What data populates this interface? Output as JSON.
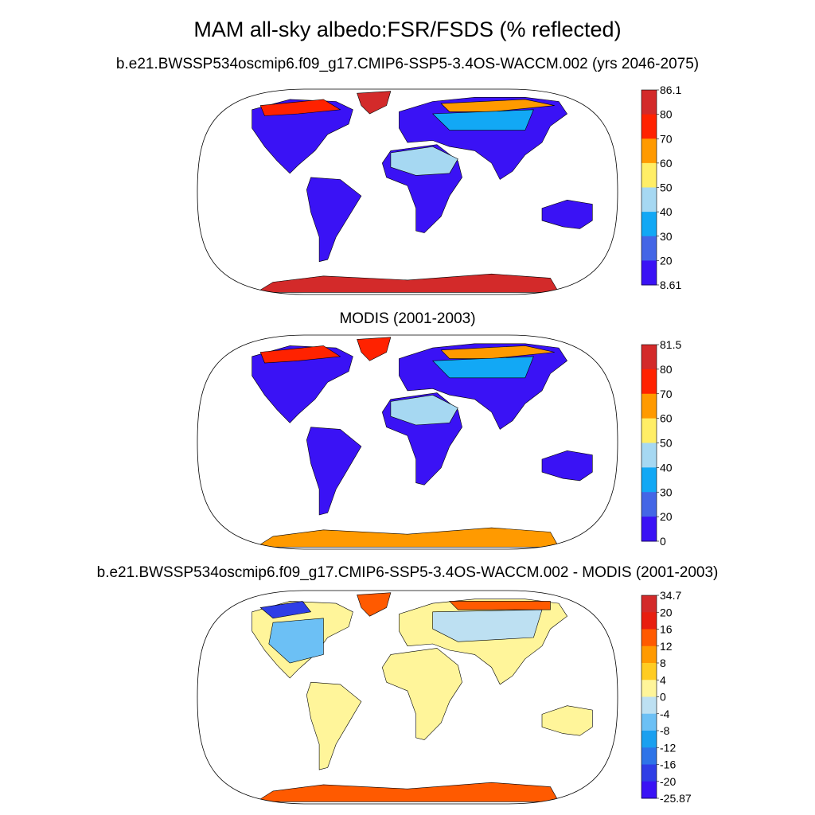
{
  "title": "MAM all-sky albedo:FSR/FSDS (% reflected)",
  "panels": [
    {
      "id": "model",
      "title": "b.e21.BWSSP534oscmip6.f09_g17.CMIP6-SSP5-3.4OS-WACCM.002 (yrs 2046-2075)",
      "colorbar": {
        "labels": [
          "86.1",
          "80",
          "70",
          "60",
          "50",
          "40",
          "30",
          "20",
          "8.61"
        ],
        "colors": [
          "#d32a2a",
          "#ff2200",
          "#ff9a00",
          "#ffee66",
          "#a6d8f2",
          "#12a8f5",
          "#4466e6",
          "#3a12f5"
        ]
      },
      "land_color": "#3a12f5",
      "antarctica_color": "#d32a2a",
      "greenland_color": "#d32a2a"
    },
    {
      "id": "obs",
      "title": "MODIS (2001-2003)",
      "colorbar": {
        "labels": [
          "81.5",
          "80",
          "70",
          "60",
          "50",
          "40",
          "30",
          "20",
          "0"
        ],
        "colors": [
          "#d32a2a",
          "#ff2200",
          "#ff9a00",
          "#ffee66",
          "#a6d8f2",
          "#12a8f5",
          "#4466e6",
          "#3a12f5"
        ]
      },
      "land_color": "#3a12f5",
      "antarctica_color": "#ff9a00",
      "greenland_color": "#ff2200"
    },
    {
      "id": "diff",
      "title": "b.e21.BWSSP534oscmip6.f09_g17.CMIP6-SSP5-3.4OS-WACCM.002 - MODIS (2001-2003)",
      "colorbar": {
        "labels": [
          "34.7",
          "20",
          "16",
          "12",
          "8",
          "4",
          "0",
          "-4",
          "-8",
          "-12",
          "-16",
          "-20",
          "-25.87"
        ],
        "colors": [
          "#d32a2a",
          "#e81e10",
          "#ff5a00",
          "#ff9a00",
          "#ffcc22",
          "#fff59a",
          "#bde0f2",
          "#6cc0f5",
          "#1aa0f0",
          "#2e74e8",
          "#2f3ee6",
          "#3a12f5"
        ]
      },
      "land_color": "#fff59a",
      "antarctica_color": "#ff5a00",
      "greenland_color": "#ff5a00"
    }
  ]
}
